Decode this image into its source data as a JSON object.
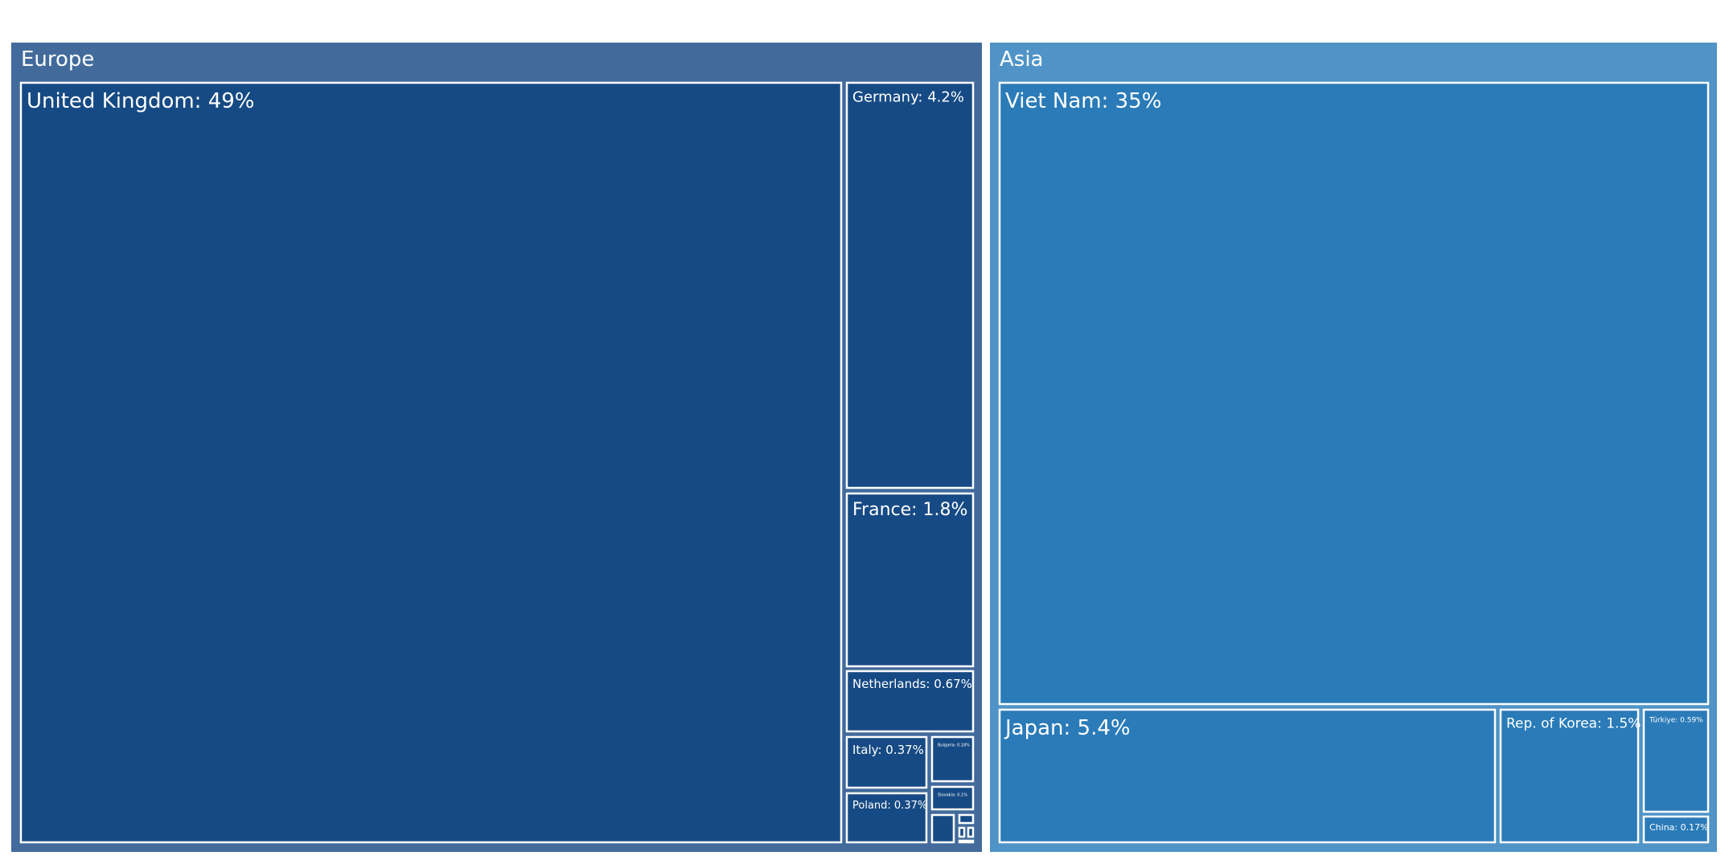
{
  "chart_data": {
    "type": "treemap",
    "colors": {
      "Europe": {
        "region": "#426b9c",
        "leaf": "#164a84"
      },
      "Asia": {
        "region": "#5094c7",
        "leaf": "#2a7bb8"
      }
    },
    "regions": [
      {
        "name": "Europe",
        "children": [
          {
            "name": "United Kingdom",
            "label": "United Kingdom: 49%",
            "value": 49
          },
          {
            "name": "Germany",
            "label": "Germany: 4.2%",
            "value": 4.2
          },
          {
            "name": "France",
            "label": "France: 1.8%",
            "value": 1.8
          },
          {
            "name": "Netherlands",
            "label": "Netherlands: 0.67%",
            "value": 0.67
          },
          {
            "name": "Italy",
            "label": "Italy: 0.37%",
            "value": 0.37
          },
          {
            "name": "Poland",
            "label": "Poland: 0.37%",
            "value": 0.37
          },
          {
            "name": "Bulgaria",
            "label": "Bulgaria: 0.18%",
            "value": 0.18
          },
          {
            "name": "Slovakia",
            "label": "Slovakia: 0.1%",
            "value": 0.1
          },
          {
            "name": "small-1",
            "label": "",
            "value": 0.06
          },
          {
            "name": "small-2",
            "label": "",
            "value": 0.02
          },
          {
            "name": "small-3",
            "label": "",
            "value": 0.015
          },
          {
            "name": "small-4",
            "label": "",
            "value": 0.015
          },
          {
            "name": "small-5",
            "label": "",
            "value": 0.01
          }
        ]
      },
      {
        "name": "Asia",
        "children": [
          {
            "name": "Viet Nam",
            "label": "Viet Nam: 35%",
            "value": 35
          },
          {
            "name": "Japan",
            "label": "Japan: 5.4%",
            "value": 5.4
          },
          {
            "name": "Rep. of Korea",
            "label": "Rep. of Korea: 1.5%",
            "value": 1.5
          },
          {
            "name": "Türkiye",
            "label": "Türkiye: 0.59%",
            "value": 0.59
          },
          {
            "name": "China",
            "label": "China: 0.17%",
            "value": 0.17
          }
        ]
      }
    ]
  }
}
